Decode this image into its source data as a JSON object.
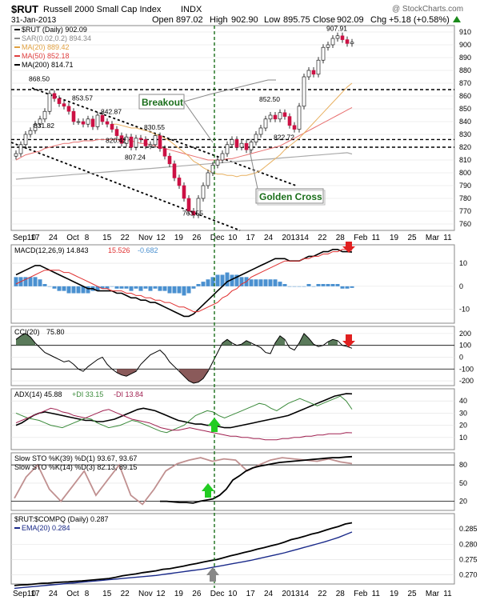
{
  "header": {
    "symbol": "$RUT",
    "name": "Russell 2000 Small Cap Index",
    "exchange": "INDX",
    "date": "31-Jan-2013",
    "ohlc": {
      "open_label": "Open",
      "open": "897.02",
      "high_label": "High",
      "high": "902.90",
      "low_label": "Low",
      "low": "895.75",
      "close_label": "Close",
      "close": "902.09",
      "chg_label": "Chg",
      "chg": "+5.18 (+0.58%)"
    },
    "watermark": "@ StockCharts.com"
  },
  "legend": [
    {
      "label": "$RUT (Daily) 902.09",
      "color": "#000000"
    },
    {
      "label": "SAR(0.02,0.2) 894.34",
      "color": "#888888"
    },
    {
      "label": "MA(20) 889.42",
      "color": "#e0a040"
    },
    {
      "label": "MA(50) 852.18",
      "color": "#e04040"
    },
    {
      "label": "MA(200) 814.71",
      "color": "#000000"
    }
  ],
  "annotations": {
    "breakout": "Breakout",
    "golden_cross": "Golden Cross"
  },
  "colors": {
    "up": "#ffffff",
    "down": "#cc1144",
    "ma20": "#e8b060",
    "ma50": "#e87070",
    "ma200": "#aaaaaa",
    "macd_hist": "#4a90d0",
    "dark_green": "#1a6e1a",
    "osc_fill": "#5a7a5a",
    "cci_down": "#8a5a5a",
    "plus_di": "#3a8a3a",
    "minus_di": "#a02050",
    "ema": "#1a2a8a"
  },
  "chart_data": [
    {
      "type": "candlestick",
      "title": "$RUT (Daily)",
      "ylim": [
        755,
        915
      ],
      "yticks": [
        760,
        770,
        780,
        790,
        800,
        810,
        820,
        830,
        840,
        850,
        860,
        870,
        880,
        890,
        900,
        910
      ],
      "x_labels": [
        "Sep10",
        "17",
        "24",
        "Oct",
        "8",
        "15",
        "22",
        "Nov",
        "12",
        "19",
        "26",
        "Dec",
        "10",
        "17",
        "24",
        "2013",
        "14",
        "22",
        "28",
        "Feb",
        "11",
        "19",
        "25",
        "Mar",
        "11"
      ],
      "price_labels": [
        {
          "text": "868.50",
          "i": 5,
          "v": 868.5
        },
        {
          "text": "853.57",
          "i": 14,
          "v": 853.57
        },
        {
          "text": "842.87",
          "i": 20,
          "v": 842.87
        },
        {
          "text": "831.82",
          "i": 6,
          "v": 831.82
        },
        {
          "text": "830.55",
          "i": 29,
          "v": 830.55
        },
        {
          "text": "820.42",
          "i": 21,
          "v": 820.42
        },
        {
          "text": "807.24",
          "i": 25,
          "v": 807.24
        },
        {
          "text": "763.55",
          "i": 37,
          "v": 763.55
        },
        {
          "text": "852.50",
          "i": 53,
          "v": 852.5
        },
        {
          "text": "822.72",
          "i": 56,
          "v": 822.72
        },
        {
          "text": "907.91",
          "i": 67,
          "v": 907.91
        }
      ],
      "hlines": [
        865,
        826,
        820
      ],
      "close": [
        815,
        822,
        830,
        833,
        838,
        842,
        848,
        862,
        858,
        854,
        852,
        848,
        840,
        840,
        838,
        842,
        836,
        845,
        840,
        838,
        834,
        829,
        823,
        828,
        820,
        827,
        826,
        821,
        822,
        829,
        819,
        813,
        807,
        796,
        790,
        780,
        770,
        767,
        780,
        790,
        800,
        806,
        810,
        815,
        822,
        826,
        820,
        823,
        818,
        824,
        830,
        835,
        842,
        845,
        842,
        847,
        844,
        837,
        834,
        852,
        875,
        880,
        877,
        888,
        898,
        900,
        905,
        907,
        904,
        901,
        902
      ],
      "ma20": [
        null,
        null,
        null,
        null,
        null,
        null,
        null,
        null,
        null,
        null,
        null,
        null,
        null,
        null,
        null,
        null,
        null,
        null,
        null,
        null,
        838,
        838,
        837,
        836,
        835,
        835,
        834,
        833,
        832,
        830,
        829,
        827,
        825,
        822,
        819,
        816,
        813,
        809,
        807,
        804,
        802,
        800,
        799,
        799,
        798,
        798,
        797,
        798,
        798,
        799,
        800,
        802,
        805,
        808,
        811,
        814,
        818,
        821,
        824,
        827,
        831,
        835,
        839,
        843,
        847,
        851,
        855,
        859,
        863,
        867,
        870
      ],
      "ma50": [
        810,
        812,
        814,
        815,
        816,
        817,
        819,
        820,
        821,
        822,
        823,
        823,
        824,
        824,
        825,
        825,
        825,
        826,
        826,
        826,
        826,
        826,
        825,
        825,
        825,
        824,
        823,
        823,
        822,
        821,
        820,
        819,
        818,
        817,
        816,
        815,
        814,
        813,
        812,
        811,
        810,
        810,
        810,
        810,
        811,
        811,
        812,
        813,
        814,
        815,
        816,
        817,
        818,
        819,
        820,
        821,
        823,
        825,
        827,
        829,
        831,
        833,
        835,
        837,
        839,
        841,
        843,
        845,
        847,
        849,
        851
      ],
      "ma200": [
        795,
        795.3,
        795.6,
        795.9,
        796.2,
        796.5,
        796.8,
        797.1,
        797.4,
        797.7,
        798,
        798.3,
        798.6,
        798.9,
        799.2,
        799.5,
        799.8,
        800.1,
        800.4,
        800.7,
        801,
        801.3,
        801.6,
        801.9,
        802.2,
        802.5,
        802.8,
        803.1,
        803.4,
        803.7,
        804,
        804.3,
        804.6,
        804.9,
        805.2,
        805.5,
        805.8,
        806.1,
        806.4,
        806.7,
        807,
        807.3,
        807.6,
        807.9,
        808.2,
        808.5,
        808.8,
        809.1,
        809.4,
        809.7,
        810,
        810.3,
        810.6,
        810.9,
        811.2,
        811.5,
        811.8,
        812.1,
        812.4,
        812.7,
        813,
        813.3,
        813.6,
        813.9,
        814.2,
        814.5,
        814.8,
        815.1,
        815.4,
        815.7,
        814.71
      ]
    },
    {
      "type": "line",
      "title": "MACD(12,26,9)",
      "ylim": [
        -16,
        18
      ],
      "yticks": [
        -10,
        0,
        10
      ],
      "series": [
        {
          "name": "MACD(12,26,9) 14.843",
          "color": "#000000",
          "values": [
            5,
            6,
            7,
            8,
            9,
            9,
            8,
            7,
            6,
            5,
            4,
            3,
            2,
            1,
            0,
            -1,
            -1,
            -2,
            -2,
            -2,
            -2,
            -3,
            -3,
            -4,
            -5,
            -5,
            -6,
            -6,
            -7,
            -7,
            -8,
            -9,
            -10,
            -11,
            -12,
            -13,
            -13,
            -12,
            -10,
            -8,
            -6,
            -4,
            -2,
            0,
            2,
            3,
            4,
            5,
            6,
            7,
            8,
            9,
            10,
            11,
            12,
            12,
            12,
            11,
            11,
            11,
            12,
            13,
            13,
            14,
            15,
            15,
            16,
            16,
            15,
            15,
            14.843
          ]
        },
        {
          "name": "15.526",
          "color": "#e03030",
          "values": [
            1,
            2,
            3,
            4,
            5,
            6,
            7,
            7,
            7,
            7,
            6,
            6,
            5,
            4,
            3,
            2,
            1,
            0,
            -1,
            -1,
            -2,
            -2,
            -2,
            -3,
            -3,
            -4,
            -4,
            -5,
            -5,
            -6,
            -6,
            -7,
            -7,
            -8,
            -9,
            -9,
            -10,
            -11,
            -11,
            -10,
            -9,
            -8,
            -7,
            -5,
            -4,
            -2,
            -1,
            1,
            2,
            4,
            5,
            6,
            7,
            8,
            9,
            10,
            11,
            11,
            11,
            11,
            12,
            12,
            13,
            13,
            14,
            14,
            15,
            15,
            16,
            16,
            15.526
          ]
        }
      ],
      "hist_label": "-0.682"
    },
    {
      "type": "line",
      "title": "CCI(20)",
      "ylim": [
        -240,
        260
      ],
      "yticks": [
        -200,
        -100,
        0,
        100,
        200
      ],
      "last": "75.80",
      "values": [
        150,
        180,
        200,
        170,
        120,
        80,
        40,
        20,
        0,
        -20,
        -40,
        -30,
        -60,
        -100,
        -120,
        -80,
        -50,
        -20,
        0,
        -60,
        -100,
        -130,
        -150,
        -160,
        -140,
        -120,
        -60,
        -20,
        20,
        40,
        60,
        20,
        -40,
        -80,
        -120,
        -160,
        -200,
        -220,
        -210,
        -180,
        -120,
        -40,
        40,
        120,
        150,
        120,
        100,
        110,
        140,
        120,
        100,
        80,
        40,
        30,
        120,
        180,
        150,
        80,
        60,
        120,
        200,
        160,
        110,
        90,
        100,
        130,
        150,
        140,
        100,
        90,
        75.8
      ]
    },
    {
      "type": "line",
      "title": "ADX(14)",
      "ylim": [
        0,
        50
      ],
      "yticks": [
        10,
        20,
        30,
        40
      ],
      "series": [
        {
          "name": "ADX(14) 45.88",
          "color": "#000000",
          "values": [
            20,
            22,
            25,
            28,
            30,
            31,
            30,
            29,
            28,
            27,
            26,
            25,
            24,
            24,
            23,
            23,
            24,
            25,
            27,
            29,
            31,
            33,
            34,
            33,
            32,
            30,
            28,
            26,
            24,
            23,
            22,
            21,
            21,
            20,
            20,
            19,
            18,
            18,
            19,
            20,
            21,
            22,
            23,
            24,
            25,
            26,
            27,
            28,
            30,
            32,
            34,
            36,
            38,
            40,
            42,
            44,
            45,
            46,
            45.88
          ]
        },
        {
          "name": "+DI 33.15",
          "color": "#3a8a3a",
          "values": [
            30,
            28,
            26,
            25,
            24,
            22,
            20,
            19,
            18,
            20,
            22,
            24,
            26,
            25,
            22,
            20,
            18,
            19,
            20,
            22,
            24,
            23,
            21,
            19,
            17,
            15,
            14,
            16,
            18,
            20,
            24,
            28,
            30,
            32,
            31,
            28,
            26,
            28,
            30,
            32,
            34,
            36,
            38,
            37,
            34,
            32,
            35,
            38,
            40,
            42,
            40,
            38,
            36,
            38,
            40,
            42,
            44,
            40,
            33.15
          ]
        },
        {
          "name": "-DI 13.84",
          "color": "#a02050",
          "values": [
            22,
            24,
            26,
            28,
            30,
            32,
            34,
            33,
            31,
            30,
            28,
            27,
            26,
            28,
            30,
            32,
            33,
            31,
            29,
            27,
            25,
            24,
            23,
            22,
            20,
            18,
            17,
            16,
            16,
            17,
            18,
            17,
            16,
            15,
            14,
            13,
            12,
            11,
            11,
            10,
            10,
            9,
            9,
            8,
            8,
            8,
            9,
            9,
            10,
            10,
            11,
            11,
            12,
            12,
            13,
            13,
            13,
            14,
            13.84
          ]
        }
      ]
    },
    {
      "type": "line",
      "title": "Slow STO",
      "ylim": [
        5,
        100
      ],
      "yticks": [
        20,
        50,
        80
      ],
      "series": [
        {
          "name": "Slow STO %K(39) %D(1) 93.67, 93.67",
          "color": "#000000",
          "values": [
            20,
            20,
            19,
            18,
            18,
            17,
            20,
            22,
            24,
            30,
            40,
            55,
            62,
            70,
            75,
            78,
            80,
            82,
            84,
            85,
            86,
            87,
            88,
            89,
            90,
            91,
            92,
            92,
            93,
            93.67
          ]
        },
        {
          "name": "Slow STO %K(14) %D(3) 82.13, 89.15",
          "color": "#c09090",
          "values": [
            25,
            60,
            80,
            40,
            20,
            45,
            70,
            30,
            55,
            80,
            30,
            15,
            40,
            70,
            82,
            88,
            92,
            86,
            90,
            88,
            70,
            80,
            88,
            92,
            90,
            88,
            86,
            90,
            85,
            82.13
          ]
        }
      ]
    },
    {
      "type": "line",
      "title": "$RUT:$COMPQ (Daily)",
      "ylim": [
        0.267,
        0.29
      ],
      "yticks": [
        0.27,
        0.275,
        0.28,
        0.285
      ],
      "series": [
        {
          "name": "$RUT:$COMPQ (Daily) 0.287",
          "color": "#000000",
          "values": [
            0.2665,
            0.2667,
            0.2668,
            0.267,
            0.2672,
            0.2673,
            0.2675,
            0.2676,
            0.2677,
            0.2679,
            0.268,
            0.2682,
            0.2684,
            0.2686,
            0.2688,
            0.2692,
            0.2697,
            0.27,
            0.2703,
            0.2707,
            0.271,
            0.2713,
            0.2718,
            0.272,
            0.2724,
            0.2728,
            0.2733,
            0.2737,
            0.2742,
            0.2746,
            0.275,
            0.2756,
            0.2762,
            0.2767,
            0.2773,
            0.2778,
            0.2784,
            0.2789,
            0.2795,
            0.28,
            0.2807,
            0.2815,
            0.282,
            0.2826,
            0.2833,
            0.2838,
            0.2845,
            0.2852,
            0.2858,
            0.2866,
            0.287
          ]
        },
        {
          "name": "EMA(20) 0.284",
          "color": "#1a2a8a",
          "values": [
            0.2656,
            0.2658,
            0.266,
            0.2662,
            0.2664,
            0.2666,
            0.2668,
            0.267,
            0.2672,
            0.2674,
            0.2676,
            0.2678,
            0.268,
            0.2682,
            0.2684,
            0.2686,
            0.2688,
            0.269,
            0.2692,
            0.2694,
            0.2696,
            0.2698,
            0.2701,
            0.2704,
            0.2707,
            0.271,
            0.2713,
            0.2716,
            0.2719,
            0.2723,
            0.2727,
            0.2731,
            0.2735,
            0.2739,
            0.2743,
            0.2747,
            0.2752,
            0.2757,
            0.2762,
            0.2767,
            0.2772,
            0.2778,
            0.2784,
            0.279,
            0.2796,
            0.2802,
            0.2808,
            0.2815,
            0.2822,
            0.2831,
            0.284
          ]
        }
      ]
    }
  ]
}
